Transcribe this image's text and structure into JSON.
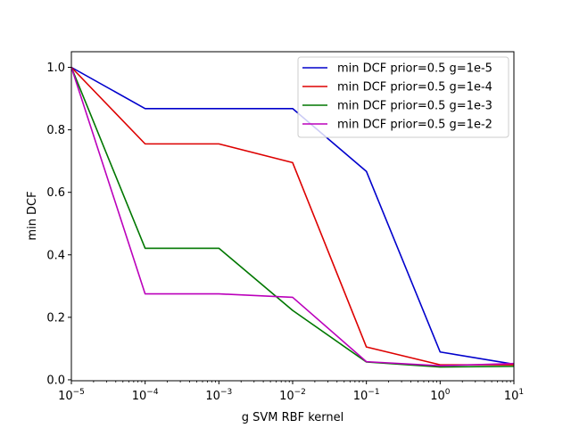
{
  "chart_data": {
    "type": "line",
    "title": "",
    "xlabel": "g SVM RBF kernel",
    "ylabel": "min DCF",
    "x_scale": "log",
    "x": [
      1e-05,
      0.0001,
      0.001,
      0.01,
      0.1,
      1,
      10
    ],
    "xlim": [
      1e-05,
      10
    ],
    "ylim": [
      -0.003,
      1.05
    ],
    "x_ticks": [
      {
        "value": 1e-05,
        "base": "10",
        "exp": "−5"
      },
      {
        "value": 0.0001,
        "base": "10",
        "exp": "−4"
      },
      {
        "value": 0.001,
        "base": "10",
        "exp": "−3"
      },
      {
        "value": 0.01,
        "base": "10",
        "exp": "−2"
      },
      {
        "value": 0.1,
        "base": "10",
        "exp": "−1"
      },
      {
        "value": 1,
        "base": "10",
        "exp": "0"
      },
      {
        "value": 10,
        "base": "10",
        "exp": "1"
      }
    ],
    "y_ticks": [
      {
        "value": 0.0,
        "label": "0.0"
      },
      {
        "value": 0.2,
        "label": "0.2"
      },
      {
        "value": 0.4,
        "label": "0.4"
      },
      {
        "value": 0.6,
        "label": "0.6"
      },
      {
        "value": 0.8,
        "label": "0.8"
      },
      {
        "value": 1.0,
        "label": "1.0"
      }
    ],
    "grid": false,
    "legend_position": "top-right",
    "series": [
      {
        "name": "min DCF prior=0.5 g=1e-5",
        "color": "#0000cc",
        "values": [
          1.0,
          0.868,
          0.868,
          0.868,
          0.667,
          0.089,
          0.05
        ]
      },
      {
        "name": "min DCF prior=0.5 g=1e-4",
        "color": "#dd0000",
        "values": [
          1.0,
          0.755,
          0.755,
          0.695,
          0.105,
          0.048,
          0.048
        ]
      },
      {
        "name": "min DCF prior=0.5 g=1e-3",
        "color": "#007700",
        "values": [
          1.0,
          0.421,
          0.421,
          0.222,
          0.057,
          0.041,
          0.043
        ]
      },
      {
        "name": "min DCF prior=0.5 g=1e-2",
        "color": "#bb00bb",
        "values": [
          1.0,
          0.275,
          0.275,
          0.264,
          0.058,
          0.045,
          0.052
        ]
      }
    ]
  }
}
